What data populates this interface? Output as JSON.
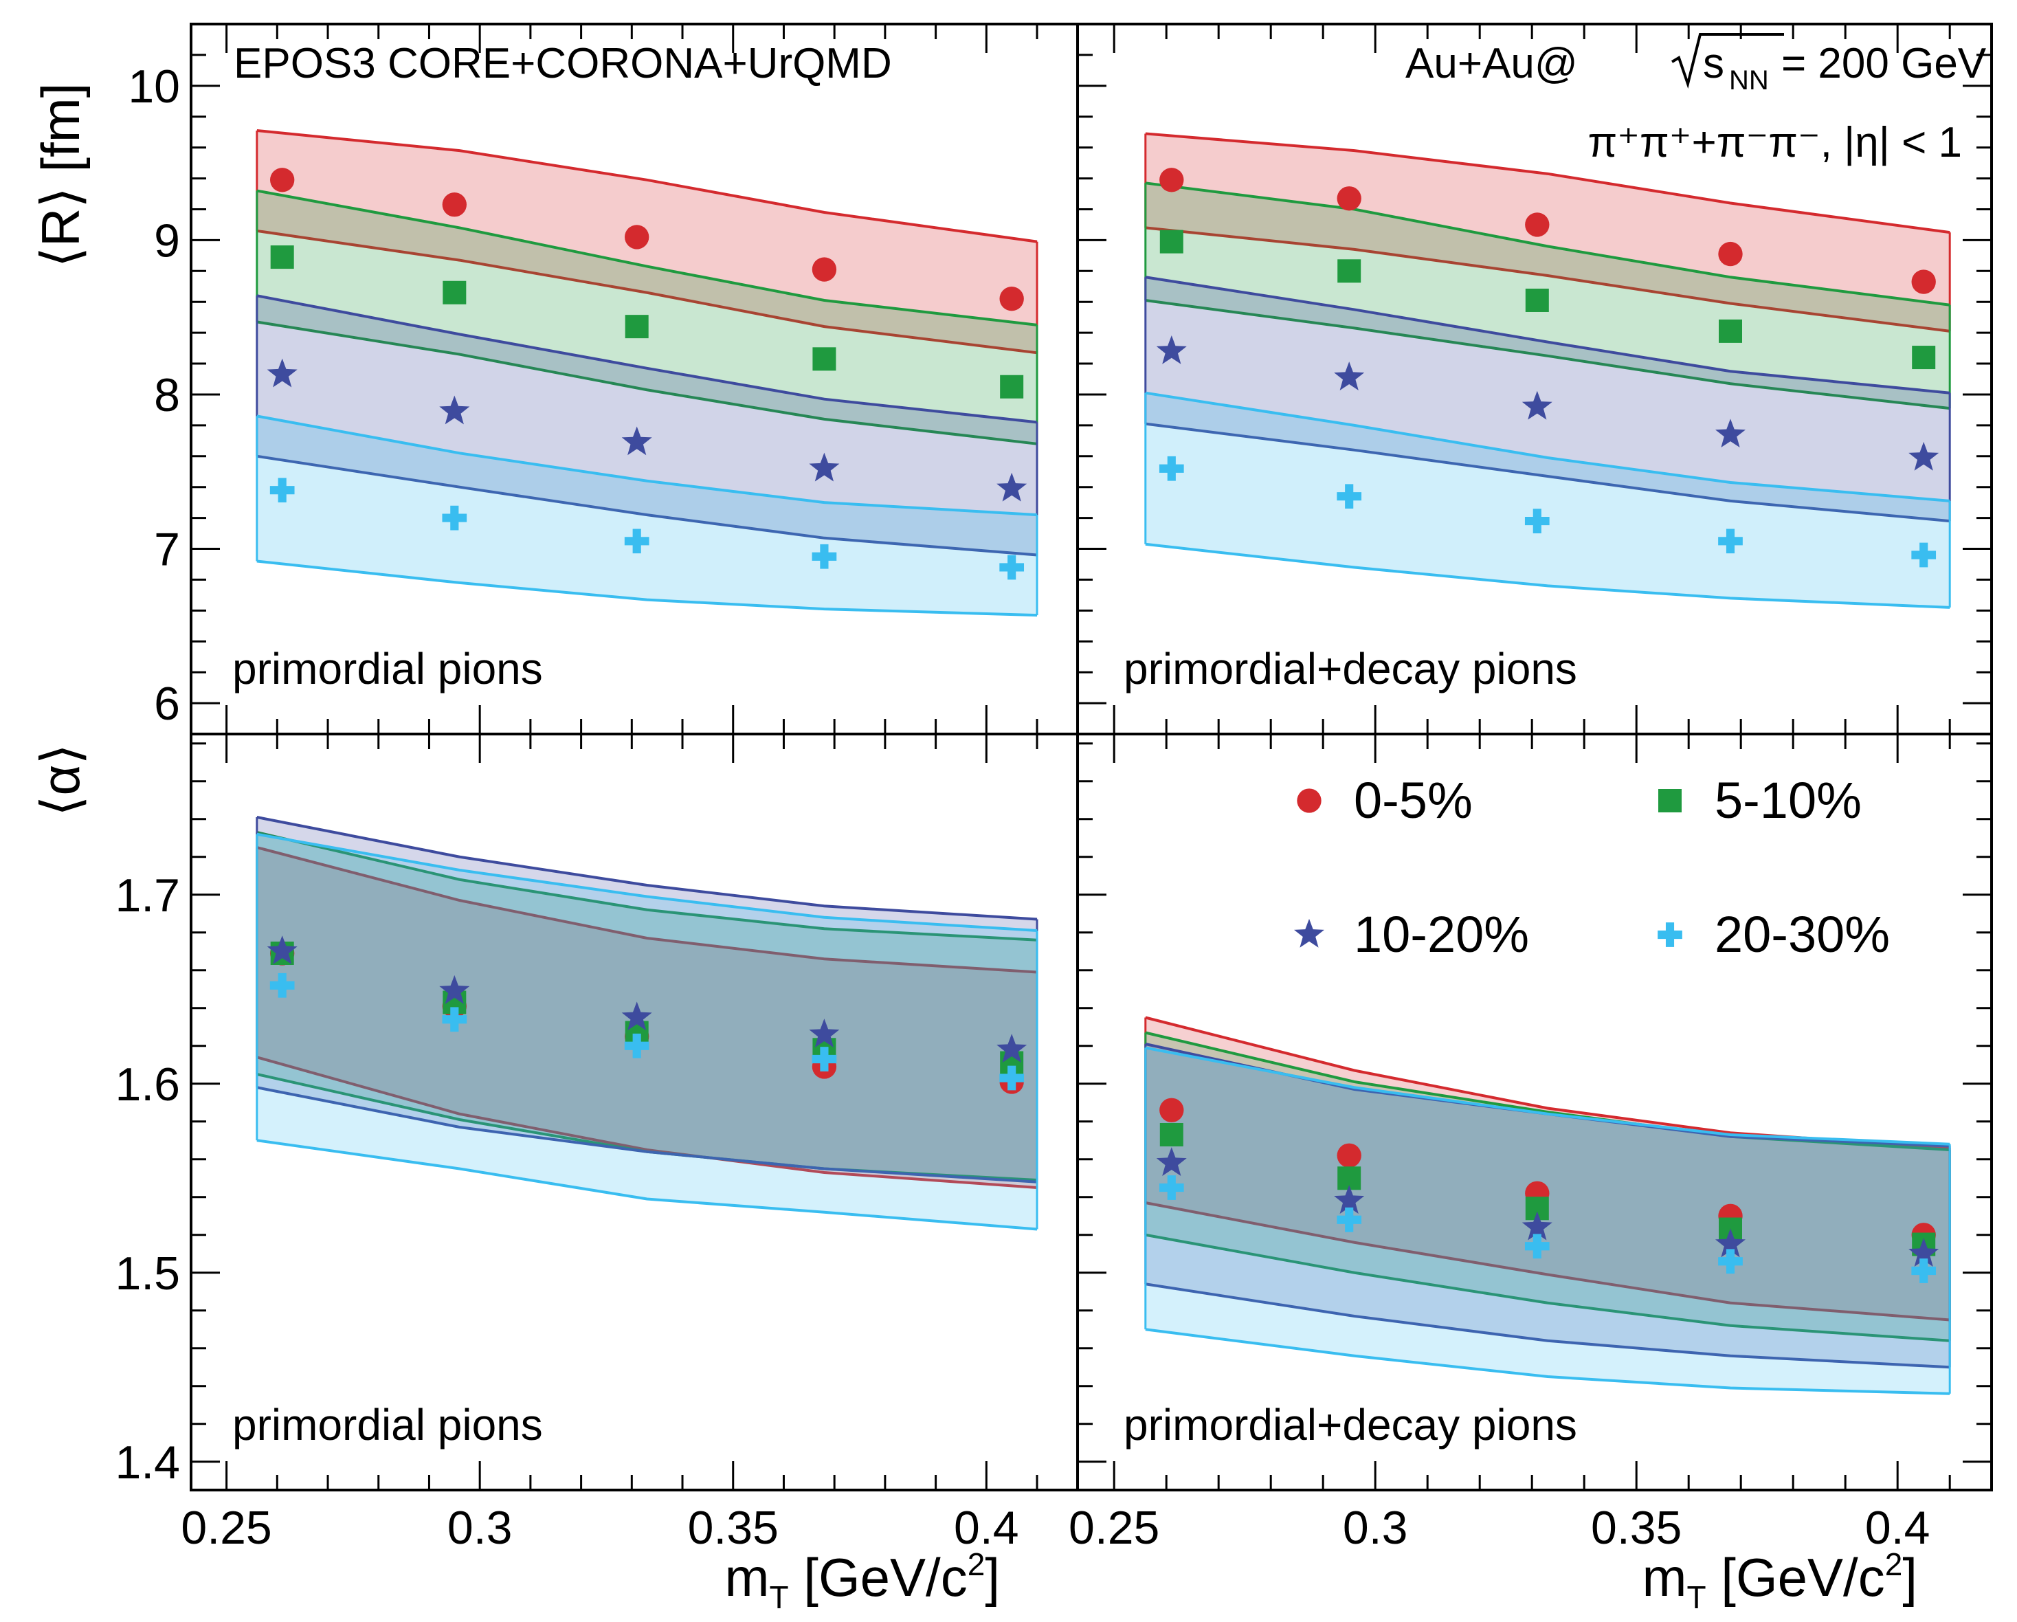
{
  "colors": {
    "0-5%": "#d42a2e",
    "5-10%": "#1f9a3f",
    "10-20%": "#3e4b9e",
    "20-30%": "#39bdf0"
  },
  "header": {
    "model_label": "EPOS3 CORE+CORONA+UrQMD",
    "system_prefix": "Au+Au@",
    "system_sqrt": "s",
    "system_sub": "NN",
    "system_suffix": " = 200 GeV",
    "particles": "π⁺π⁺+π⁻π⁻, |η| < 1"
  },
  "axes": {
    "top_ylabel": "⟨R⟩ [fm]",
    "bottom_ylabel": "⟨α⟩",
    "xlabel_main": "m",
    "xlabel_sub": "T",
    "xlabel_rest": " [GeV/c",
    "xlabel_sup": "2",
    "xlabel_end": "]",
    "x_ticks": [
      "0.25",
      "0.3",
      "0.35",
      "0.4"
    ],
    "top_y_ticks": [
      "6",
      "7",
      "8",
      "9",
      "10"
    ],
    "bottom_y_ticks": [
      "1.4",
      "1.5",
      "1.6",
      "1.7"
    ]
  },
  "panels": {
    "top_left": "primordial pions",
    "top_right": "primordial+decay pions",
    "bottom_left": "primordial pions",
    "bottom_right": "primordial+decay pions"
  },
  "legend": [
    "0-5%",
    "5-10%",
    "10-20%",
    "20-30%"
  ],
  "chart_data": [
    {
      "type": "scatter",
      "panel": "top-left",
      "title": "primordial pions",
      "ylabel": "⟨R⟩ [fm]",
      "xlabel": "mT [GeV/c2]",
      "xlim": [
        0.243,
        0.418
      ],
      "ylim": [
        5.8,
        10.4
      ],
      "band_x": [
        0.256,
        0.296,
        0.333,
        0.368,
        0.41
      ],
      "x": [
        0.261,
        0.295,
        0.331,
        0.368,
        0.405
      ],
      "series": [
        {
          "name": "0-5%",
          "marker": "circle",
          "values": [
            9.39,
            9.23,
            9.02,
            8.81,
            8.62
          ],
          "band_upper": [
            9.71,
            9.58,
            9.39,
            9.18,
            8.99
          ],
          "band_lower": [
            9.06,
            8.87,
            8.66,
            8.44,
            8.27
          ]
        },
        {
          "name": "5-10%",
          "marker": "square",
          "values": [
            8.89,
            8.66,
            8.44,
            8.23,
            8.05
          ],
          "band_upper": [
            9.32,
            9.08,
            8.83,
            8.61,
            8.45
          ],
          "band_lower": [
            8.47,
            8.26,
            8.03,
            7.84,
            7.68
          ]
        },
        {
          "name": "10-20%",
          "marker": "star",
          "values": [
            8.13,
            7.89,
            7.69,
            7.52,
            7.39
          ],
          "band_upper": [
            8.64,
            8.39,
            8.17,
            7.97,
            7.82
          ],
          "band_lower": [
            7.6,
            7.4,
            7.22,
            7.07,
            6.96
          ]
        },
        {
          "name": "20-30%",
          "marker": "cross",
          "values": [
            7.38,
            7.2,
            7.05,
            6.95,
            6.88
          ],
          "band_upper": [
            7.86,
            7.62,
            7.44,
            7.3,
            7.22
          ],
          "band_lower": [
            6.92,
            6.78,
            6.67,
            6.61,
            6.57
          ]
        }
      ]
    },
    {
      "type": "scatter",
      "panel": "top-right",
      "title": "primordial+decay pions",
      "ylabel": "⟨R⟩ [fm]",
      "xlabel": "mT [GeV/c2]",
      "xlim": [
        0.243,
        0.418
      ],
      "ylim": [
        5.8,
        10.4
      ],
      "band_x": [
        0.256,
        0.296,
        0.333,
        0.368,
        0.41
      ],
      "x": [
        0.261,
        0.295,
        0.331,
        0.368,
        0.405
      ],
      "series": [
        {
          "name": "0-5%",
          "marker": "circle",
          "values": [
            9.39,
            9.27,
            9.1,
            8.91,
            8.73
          ],
          "band_upper": [
            9.69,
            9.58,
            9.43,
            9.24,
            9.05
          ],
          "band_lower": [
            9.08,
            8.94,
            8.77,
            8.59,
            8.41
          ]
        },
        {
          "name": "5-10%",
          "marker": "square",
          "values": [
            8.99,
            8.8,
            8.61,
            8.41,
            8.24
          ],
          "band_upper": [
            9.37,
            9.2,
            8.96,
            8.76,
            8.58
          ],
          "band_lower": [
            8.61,
            8.43,
            8.25,
            8.07,
            7.91
          ]
        },
        {
          "name": "10-20%",
          "marker": "star",
          "values": [
            8.28,
            8.11,
            7.92,
            7.74,
            7.59
          ],
          "band_upper": [
            8.76,
            8.55,
            8.34,
            8.15,
            8.01
          ],
          "band_lower": [
            7.81,
            7.64,
            7.47,
            7.31,
            7.18
          ]
        },
        {
          "name": "20-30%",
          "marker": "cross",
          "values": [
            7.52,
            7.34,
            7.18,
            7.05,
            6.96
          ],
          "band_upper": [
            8.01,
            7.8,
            7.59,
            7.43,
            7.31
          ],
          "band_lower": [
            7.03,
            6.88,
            6.76,
            6.68,
            6.62
          ]
        }
      ]
    },
    {
      "type": "scatter",
      "panel": "bottom-left",
      "title": "primordial pions",
      "ylabel": "⟨α⟩",
      "xlabel": "mT [GeV/c2]",
      "xlim": [
        0.243,
        0.418
      ],
      "ylim": [
        1.385,
        1.785
      ],
      "band_x": [
        0.256,
        0.296,
        0.333,
        0.368,
        0.41
      ],
      "x": [
        0.261,
        0.295,
        0.331,
        0.368,
        0.405
      ],
      "series": [
        {
          "name": "0-5%",
          "marker": "circle",
          "values": [
            1.669,
            1.641,
            1.625,
            1.609,
            1.601
          ],
          "band_upper": [
            1.725,
            1.697,
            1.677,
            1.666,
            1.659
          ],
          "band_lower": [
            1.614,
            1.584,
            1.565,
            1.553,
            1.545
          ]
        },
        {
          "name": "5-10%",
          "marker": "square",
          "values": [
            1.669,
            1.643,
            1.627,
            1.618,
            1.611
          ],
          "band_upper": [
            1.733,
            1.708,
            1.692,
            1.682,
            1.676
          ],
          "band_lower": [
            1.605,
            1.581,
            1.564,
            1.555,
            1.549
          ]
        },
        {
          "name": "10-20%",
          "marker": "star",
          "values": [
            1.67,
            1.649,
            1.635,
            1.626,
            1.618
          ],
          "band_upper": [
            1.741,
            1.72,
            1.705,
            1.694,
            1.687
          ],
          "band_lower": [
            1.598,
            1.577,
            1.564,
            1.555,
            1.548
          ]
        },
        {
          "name": "20-30%",
          "marker": "cross",
          "values": [
            1.652,
            1.634,
            1.62,
            1.613,
            1.603
          ],
          "band_upper": [
            1.732,
            1.713,
            1.699,
            1.688,
            1.681
          ],
          "band_lower": [
            1.57,
            1.555,
            1.539,
            1.532,
            1.523
          ]
        }
      ]
    },
    {
      "type": "scatter",
      "panel": "bottom-right",
      "title": "primordial+decay pions",
      "ylabel": "⟨α⟩",
      "xlabel": "mT [GeV/c2]",
      "xlim": [
        0.243,
        0.418
      ],
      "ylim": [
        1.385,
        1.785
      ],
      "band_x": [
        0.256,
        0.296,
        0.333,
        0.368,
        0.41
      ],
      "x": [
        0.261,
        0.295,
        0.331,
        0.368,
        0.405
      ],
      "series": [
        {
          "name": "0-5%",
          "marker": "circle",
          "values": [
            1.586,
            1.562,
            1.542,
            1.53,
            1.52
          ],
          "band_upper": [
            1.635,
            1.607,
            1.587,
            1.574,
            1.566
          ],
          "band_lower": [
            1.537,
            1.516,
            1.499,
            1.484,
            1.475
          ]
        },
        {
          "name": "5-10%",
          "marker": "square",
          "values": [
            1.573,
            1.55,
            1.534,
            1.523,
            1.515
          ],
          "band_upper": [
            1.627,
            1.601,
            1.585,
            1.572,
            1.565
          ],
          "band_lower": [
            1.52,
            1.5,
            1.484,
            1.472,
            1.464
          ]
        },
        {
          "name": "10-20%",
          "marker": "star",
          "values": [
            1.558,
            1.538,
            1.524,
            1.515,
            1.51
          ],
          "band_upper": [
            1.621,
            1.597,
            1.584,
            1.572,
            1.567
          ],
          "band_lower": [
            1.494,
            1.477,
            1.464,
            1.456,
            1.45
          ]
        },
        {
          "name": "20-30%",
          "marker": "cross",
          "values": [
            1.545,
            1.528,
            1.514,
            1.506,
            1.501
          ],
          "band_upper": [
            1.619,
            1.598,
            1.584,
            1.573,
            1.568
          ],
          "band_lower": [
            1.47,
            1.456,
            1.445,
            1.439,
            1.436
          ]
        }
      ]
    }
  ]
}
